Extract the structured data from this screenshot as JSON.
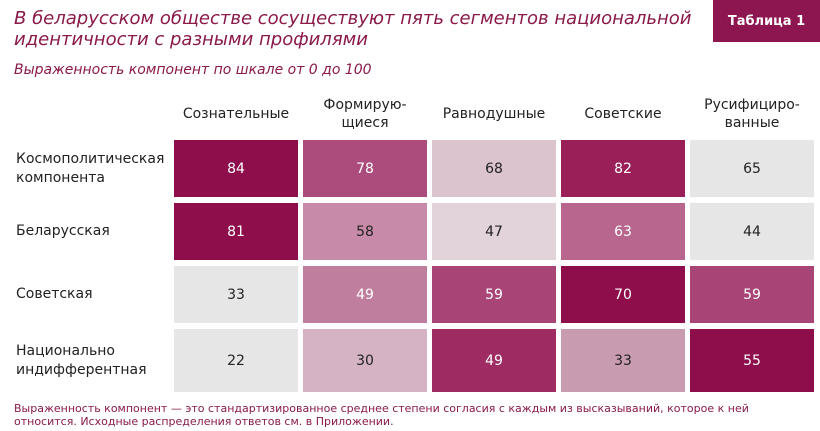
{
  "header": {
    "title": "В беларусском обществе сосуществуют пять сегментов национальной идентичности с разными профилями",
    "badge": "Таблица 1",
    "subtitle": "Выраженность компонент по шкале от 0 до 100"
  },
  "table": {
    "columns": [
      "Сознательные",
      "Формирую-\nщиеся",
      "Равнодушные",
      "Советские",
      "Русифициро-\nванные"
    ],
    "rows": [
      {
        "label": "Космополитическая\nкомпонента",
        "values": [
          84,
          78,
          68,
          82,
          65
        ],
        "colors": [
          "#8e0e4c",
          "#ab4c7c",
          "#dcc4cf",
          "#9a1f58",
          "#e6e6e6"
        ]
      },
      {
        "label": "Беларусская",
        "values": [
          81,
          58,
          47,
          63,
          44
        ],
        "colors": [
          "#8e0e4c",
          "#c78aa8",
          "#e2d2d9",
          "#b9668f",
          "#e6e6e6"
        ]
      },
      {
        "label": "Советская",
        "values": [
          33,
          49,
          59,
          70,
          59
        ],
        "colors": [
          "#e6e6e6",
          "#c07e9f",
          "#a94576",
          "#8e0e4c",
          "#a94576"
        ]
      },
      {
        "label": "Национально\nиндифферентная",
        "values": [
          22,
          30,
          49,
          33,
          55
        ],
        "colors": [
          "#e6e6e6",
          "#d6b3c4",
          "#9e2c63",
          "#c99bb1",
          "#8e0e4c"
        ]
      }
    ]
  },
  "footnote": "Выраженность компонент — это стандартизированное среднее степени согласия с каждым из высказываний, которое к ней относится. Исходные распределения ответов см. в Приложении."
}
